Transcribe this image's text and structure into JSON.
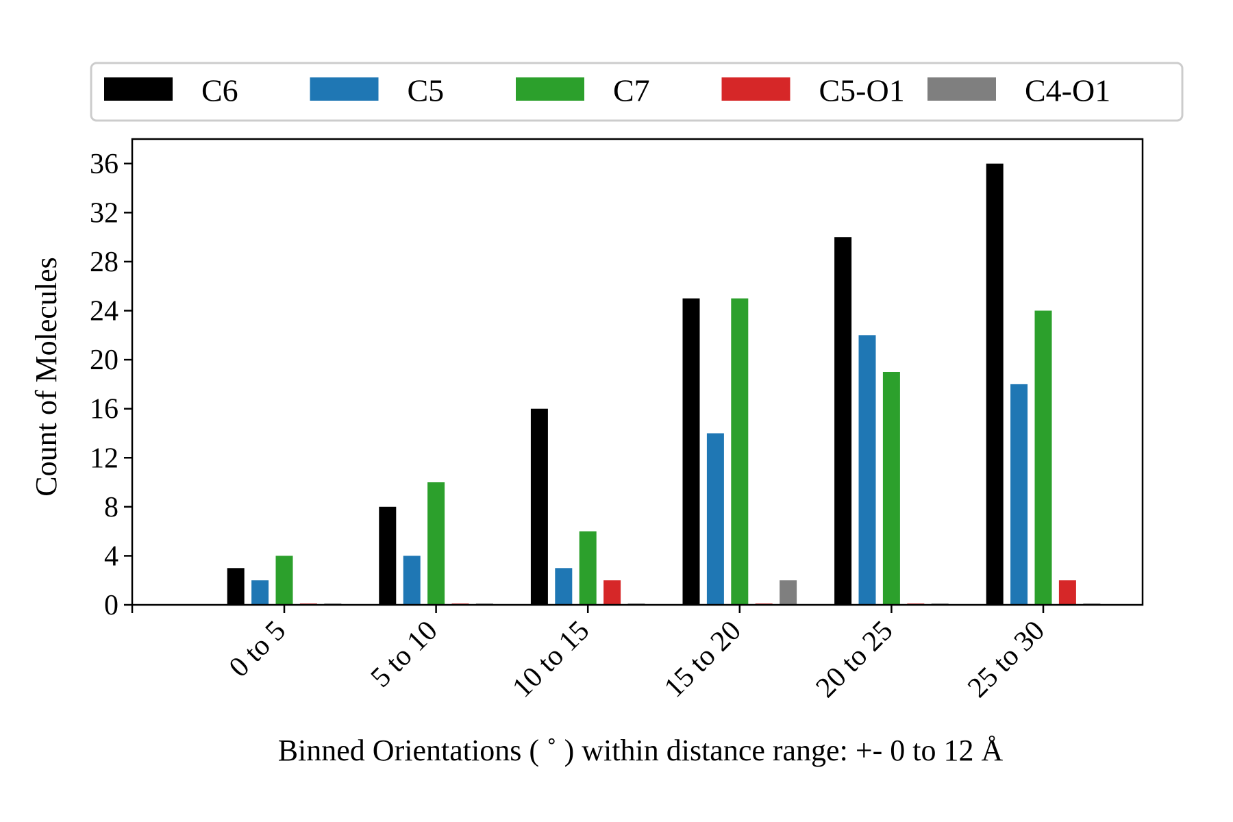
{
  "chart_data": {
    "type": "bar",
    "title": "",
    "xlabel": "Binned Orientations ( ˚ ) within distance range:  +- 0 to 12 Å",
    "ylabel": "Count of Molecules",
    "categories": [
      "0 to 5",
      "5 to 10",
      "10 to 15",
      "15 to 20",
      "20 to 25",
      "25 to 30"
    ],
    "ylim": [
      0,
      38
    ],
    "yticks": [
      0,
      4,
      8,
      12,
      16,
      20,
      24,
      28,
      32,
      36
    ],
    "grid": false,
    "legend_position": "top",
    "series": [
      {
        "name": "C6",
        "color": "#000000",
        "values": [
          3,
          8,
          16,
          25,
          30,
          36
        ]
      },
      {
        "name": "C5",
        "color": "#1f77b4",
        "values": [
          2,
          4,
          3,
          14,
          22,
          18
        ]
      },
      {
        "name": "C7",
        "color": "#2ca02c",
        "values": [
          4,
          10,
          6,
          25,
          19,
          24
        ]
      },
      {
        "name": "C5-O1",
        "color": "#d62728",
        "values": [
          0,
          0,
          2,
          0,
          0,
          2
        ]
      },
      {
        "name": "C4-O1",
        "color": "#7f7f7f",
        "values": [
          0,
          0,
          0,
          2,
          0,
          0
        ]
      }
    ]
  }
}
